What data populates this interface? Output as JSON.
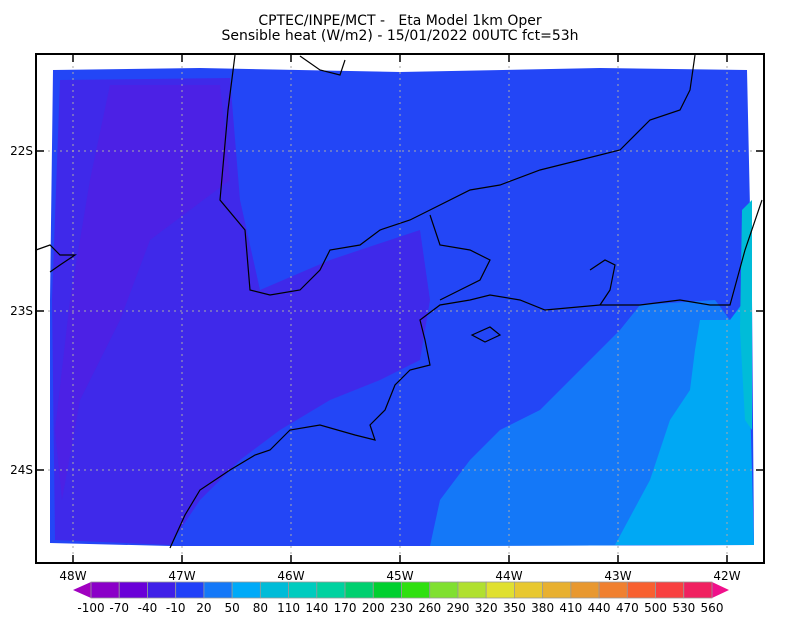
{
  "title": {
    "line1": "CPTEC/INPE/MCT -   Eta Model 1km Oper",
    "line2": "Sensible heat (W/m2) - 15/01/2022 00UTC fct=53h"
  },
  "map": {
    "lat_labels": [
      "22S",
      "23S",
      "24S"
    ],
    "lon_labels": [
      "48W",
      "47W",
      "46W",
      "45W",
      "44W",
      "43W",
      "42W"
    ],
    "grid": true,
    "field_colors": {
      "land_low": "#4a20e6",
      "land": "#2346f6",
      "ocean_near": "#1478f8",
      "ocean_far": "#00a8f4",
      "coast_strip": "#00bcd8"
    }
  },
  "colorbar": {
    "labels": [
      "-100",
      "-70",
      "-40",
      "-10",
      "20",
      "50",
      "80",
      "110",
      "140",
      "170",
      "200",
      "230",
      "260",
      "290",
      "320",
      "350",
      "380",
      "410",
      "440",
      "470",
      "500",
      "530",
      "560"
    ],
    "colors": [
      "#8b00c8",
      "#6a00d8",
      "#4020e8",
      "#2040f8",
      "#1478f8",
      "#00aaf8",
      "#00bcd8",
      "#00ccbf",
      "#00d2a0",
      "#00d070",
      "#00d030",
      "#30e010",
      "#80e030",
      "#b0e030",
      "#e0e030",
      "#e8c830",
      "#e8b030",
      "#e89830",
      "#f08030",
      "#f86030",
      "#f84040",
      "#f02060"
    ],
    "under_color": "#a000c0",
    "over_color": "#f0108a"
  }
}
